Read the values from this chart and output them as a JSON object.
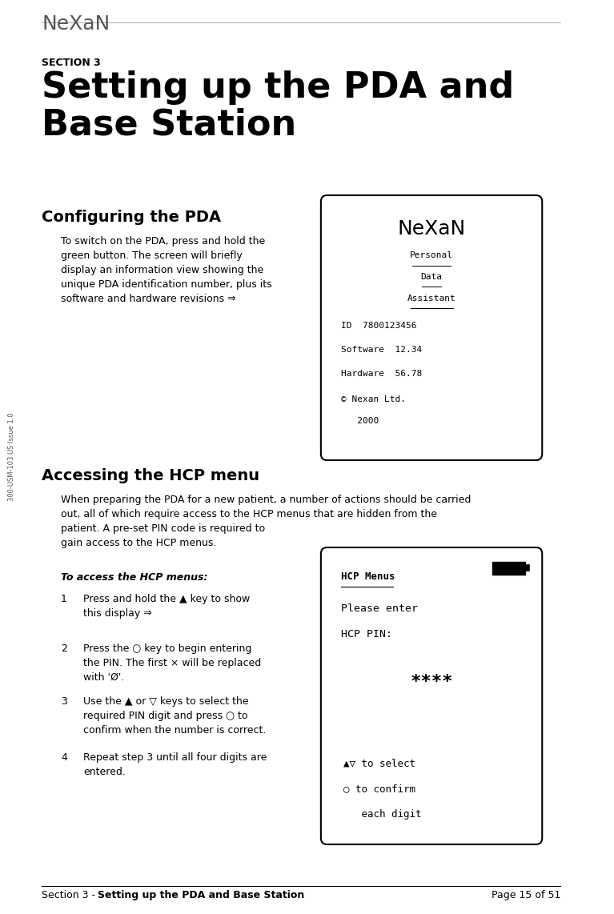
{
  "bg_color": "#ffffff",
  "page_width": 7.67,
  "page_height": 11.42,
  "header_logo": "NeXaN",
  "section_label": "SECTION 3",
  "section_title": "Setting up the PDA and\nBase Station",
  "subsection1_title": "Configuring the PDA",
  "subsection1_body": "To switch on the PDA, press and hold the\ngreen button. The screen will briefly\ndisplay an information view showing the\nunique PDA identification number, plus its\nsoftware and hardware revisions ⇒",
  "subsection2_title": "Accessing the HCP menu",
  "subsection2_intro": "When preparing the PDA for a new patient, a number of actions should be carried\nout, all of which require access to the HCP menus that are hidden from the\npatient. A pre-set PIN code is required to\ngain access to the HCP menus.",
  "subsection2_bold": "To access the HCP menus:",
  "step_texts": [
    "Press and hold the ▲ key to show\nthis display ⇒",
    "Press the ○ key to begin entering\nthe PIN. The first × will be replaced\nwith 'Ø'.",
    "Use the ▲ or ▽ keys to select the\nrequired PIN digit and press ○ to\nconfirm when the number is correct.",
    "Repeat step 3 until all four digits are\nentered."
  ],
  "footer_left": "Section 3 - ",
  "footer_left_bold": "Setting up the PDA and Base Station",
  "footer_right": "Page 15 of 51",
  "sidebar_text": "300-USM-103 US Issue 1.0",
  "screen1_mono_lines": [
    "ID  7800123456",
    "Software  12.34",
    "Hardware  56.78"
  ],
  "screen1_copyright": [
    "© Nexan Ltd.",
    "   2000"
  ],
  "screen2_header": "HCP Menus",
  "screen2_lines": [
    "Please enter",
    "HCP PIN:"
  ],
  "screen2_pin": "****",
  "screen2_bottom": [
    "▲▽ to select",
    "○ to confirm",
    "   each digit"
  ]
}
